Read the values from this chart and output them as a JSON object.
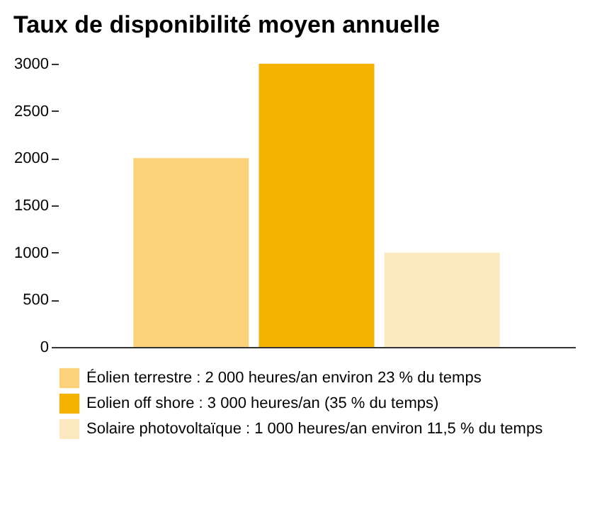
{
  "chart_data": {
    "type": "bar",
    "title": "Taux de disponibilité moyen annuelle",
    "categories": [
      null,
      null,
      null
    ],
    "series": [
      {
        "name": "Éolien terrestre : 2 000 heures/an environ 23 % du temps",
        "color": "#fbd27a",
        "values": [
          2000,
          null,
          null
        ]
      },
      {
        "name": "Eolien off shore : 3 000 heures/an (35 % du temps)",
        "color": "#f5b200",
        "values": [
          null,
          3000,
          null
        ]
      },
      {
        "name": "Solaire photovoltaïque : 1 000 heures/an environ 11,5 % du temps",
        "color": "#fde9c0",
        "values": [
          null,
          null,
          1000
        ]
      }
    ],
    "ylim": [
      0,
      3000
    ],
    "yticks": [
      0,
      500,
      1000,
      1500,
      2000,
      2500,
      3000
    ],
    "grid": false,
    "legend": "bottom"
  }
}
